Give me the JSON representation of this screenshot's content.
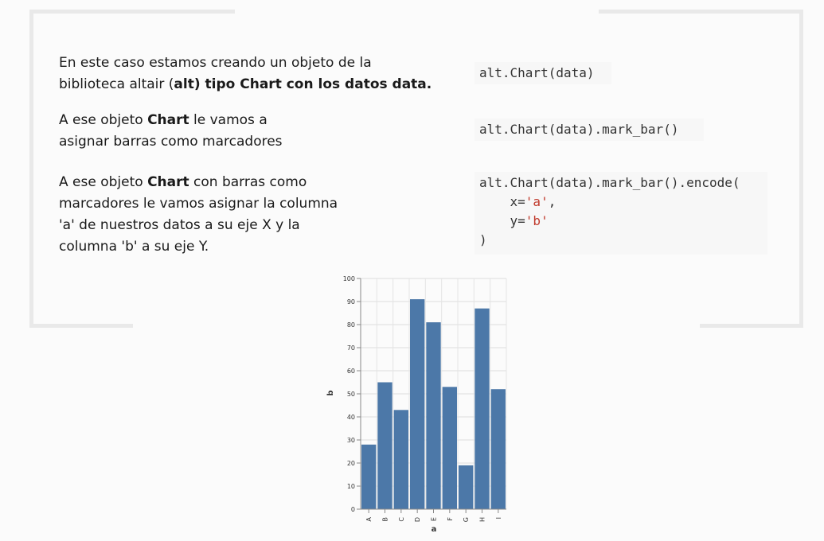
{
  "paragraphs": [
    {
      "pre": "En este caso estamos creando un objeto de la biblioteca altair (",
      "bold": "alt) tipo Chart con los datos data.",
      "post": ""
    },
    {
      "pre": "A ese objeto ",
      "bold": "Chart",
      "post": " le vamos a asignar barras como marcadores"
    },
    {
      "pre": "A ese objeto ",
      "bold": "Chart",
      "post": " con barras como marcadores le vamos asignar la columna 'a' de nuestros datos a su eje X y la columna 'b' a su eje Y."
    }
  ],
  "code": {
    "line1": "alt.Chart(data)",
    "line2": "alt.Chart(data).mark_bar()",
    "line3": "alt.Chart(data).mark_bar().encode(",
    "x_key": "    x=",
    "x_val": "'a'",
    "x_sep": ",",
    "y_key": "    y=",
    "y_val": "'b'",
    "close": ")"
  },
  "chart_data": {
    "type": "bar",
    "categories": [
      "A",
      "B",
      "C",
      "D",
      "E",
      "F",
      "G",
      "H",
      "I"
    ],
    "values": [
      28,
      55,
      43,
      91,
      81,
      53,
      19,
      87,
      52
    ],
    "xlabel": "a",
    "ylabel": "b",
    "ylim": [
      0,
      100
    ],
    "yticks": [
      0,
      10,
      20,
      30,
      40,
      50,
      60,
      70,
      80,
      90,
      100
    ],
    "grid": true,
    "bar_color": "#4c78a8"
  }
}
